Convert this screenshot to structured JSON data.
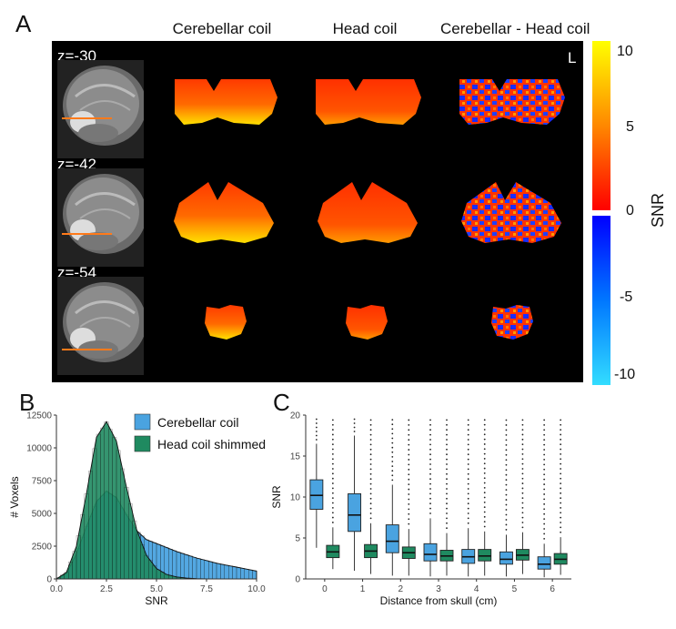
{
  "panel_a": {
    "letter": "A",
    "columns": [
      "Cerebellar coil",
      "Head coil",
      "Cerebellar - Head coil"
    ],
    "slices": [
      "z=-30",
      "z=-42",
      "z=-54"
    ],
    "orientation": "L",
    "colorbar": {
      "label": "SNR",
      "ticks": [
        "10",
        "5",
        "0",
        "-5",
        "-10"
      ],
      "colors": {
        "top": "#ffff00",
        "mid_warm": "#ff3300",
        "zero_warm": "#ff0000",
        "zero_cool": "#0000ff",
        "bottom": "#33ddff"
      }
    }
  },
  "chart_data": [
    {
      "type": "area",
      "panel": "B",
      "title": "",
      "xlabel": "SNR",
      "ylabel": "# Voxels",
      "xlim": [
        0,
        10
      ],
      "ylim": [
        0,
        12500
      ],
      "x_ticks": [
        "0.0",
        "2.5",
        "5.0",
        "7.5",
        "10.0"
      ],
      "y_ticks": [
        "0",
        "2500",
        "5000",
        "7500",
        "10000",
        "12500"
      ],
      "legend_position": "top-right",
      "series": [
        {
          "name": "Cerebellar coil",
          "color": "#4aa3e0",
          "x": [
            0,
            0.5,
            1,
            1.5,
            2,
            2.5,
            3,
            3.5,
            4,
            4.5,
            5,
            5.5,
            6,
            6.5,
            7,
            7.5,
            8,
            8.5,
            9,
            9.5,
            10
          ],
          "values": [
            0,
            400,
            1900,
            4000,
            5900,
            6700,
            6200,
            4900,
            3700,
            3000,
            2700,
            2400,
            2100,
            1850,
            1600,
            1400,
            1200,
            1050,
            900,
            750,
            600
          ]
        },
        {
          "name": "Head coil shimmed",
          "color": "#1f8a60",
          "x": [
            0,
            0.5,
            1,
            1.5,
            2,
            2.5,
            3,
            3.5,
            4,
            4.5,
            5,
            5.5,
            6,
            6.5,
            7,
            7.5,
            8
          ],
          "values": [
            0,
            500,
            2500,
            6500,
            10800,
            12000,
            10500,
            7000,
            3800,
            1800,
            800,
            350,
            150,
            60,
            20,
            5,
            0
          ]
        }
      ]
    },
    {
      "type": "box",
      "panel": "C",
      "title": "",
      "xlabel": "Distance from skull (cm)",
      "ylabel": "SNR",
      "ylim": [
        0,
        20
      ],
      "y_ticks": [
        "0",
        "5",
        "10",
        "15",
        "20"
      ],
      "categories": [
        "0",
        "1",
        "2",
        "3",
        "4",
        "5",
        "6"
      ],
      "series": [
        {
          "name": "Cerebellar coil",
          "color": "#4aa3e0",
          "boxes": [
            {
              "q1": 8.5,
              "median": 10.2,
              "q3": 12.1,
              "whisker_low": 3.8,
              "whisker_high": 16.5
            },
            {
              "q1": 5.8,
              "median": 7.8,
              "q3": 10.4,
              "whisker_low": 1.0,
              "whisker_high": 17.5
            },
            {
              "q1": 3.2,
              "median": 4.6,
              "q3": 6.6,
              "whisker_low": 0.4,
              "whisker_high": 11.5
            },
            {
              "q1": 2.2,
              "median": 3.0,
              "q3": 4.3,
              "whisker_low": 0.3,
              "whisker_high": 7.4
            },
            {
              "q1": 1.9,
              "median": 2.7,
              "q3": 3.6,
              "whisker_low": 0.3,
              "whisker_high": 6.2
            },
            {
              "q1": 1.8,
              "median": 2.4,
              "q3": 3.3,
              "whisker_low": 0.3,
              "whisker_high": 5.4
            },
            {
              "q1": 1.2,
              "median": 1.8,
              "q3": 2.7,
              "whisker_low": 0.2,
              "whisker_high": 4.3
            }
          ]
        },
        {
          "name": "Head coil shimmed",
          "color": "#1f8a60",
          "boxes": [
            {
              "q1": 2.6,
              "median": 3.3,
              "q3": 4.1,
              "whisker_low": 1.2,
              "whisker_high": 6.3
            },
            {
              "q1": 2.6,
              "median": 3.4,
              "q3": 4.2,
              "whisker_low": 0.6,
              "whisker_high": 6.8
            },
            {
              "q1": 2.5,
              "median": 3.2,
              "q3": 3.9,
              "whisker_low": 0.4,
              "whisker_high": 6.1
            },
            {
              "q1": 2.2,
              "median": 2.8,
              "q3": 3.5,
              "whisker_low": 0.4,
              "whisker_high": 5.6
            },
            {
              "q1": 2.2,
              "median": 2.8,
              "q3": 3.6,
              "whisker_low": 0.4,
              "whisker_high": 5.8
            },
            {
              "q1": 2.3,
              "median": 2.9,
              "q3": 3.6,
              "whisker_low": 0.6,
              "whisker_high": 5.7
            },
            {
              "q1": 1.8,
              "median": 2.4,
              "q3": 3.1,
              "whisker_low": 0.5,
              "whisker_high": 5.1
            }
          ]
        }
      ]
    }
  ],
  "panel_b": {
    "letter": "B"
  },
  "panel_c": {
    "letter": "C"
  }
}
